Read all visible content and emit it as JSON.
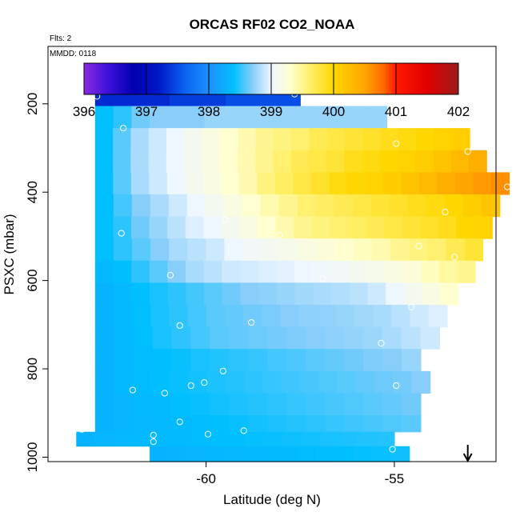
{
  "chart_data": {
    "type": "heatmap",
    "title": "ORCAS RF02 CO2_NOAA",
    "flights_label": "Flts: 2",
    "date_label": "MMDD: 0118",
    "xlabel": "Latitude (deg N)",
    "ylabel": "PSXC (mbar)",
    "xlim": [
      -64.2,
      -52.3
    ],
    "ylim": [
      1010,
      70
    ],
    "y_reversed": true,
    "x_ticks": [
      -60,
      -55
    ],
    "y_ticks": [
      200,
      400,
      600,
      800,
      1000
    ],
    "colorbar": {
      "min": 396,
      "max": 402,
      "ticks": [
        396,
        397,
        398,
        399,
        400,
        401,
        402
      ],
      "stops": [
        {
          "v": 396.0,
          "color": "#8a2be2"
        },
        {
          "v": 396.4,
          "color": "#3a10d8"
        },
        {
          "v": 396.8,
          "color": "#0000b0"
        },
        {
          "v": 397.2,
          "color": "#0018c8"
        },
        {
          "v": 397.6,
          "color": "#0a60f0"
        },
        {
          "v": 398.0,
          "color": "#1e90ff"
        },
        {
          "v": 398.4,
          "color": "#00bfff"
        },
        {
          "v": 398.7,
          "color": "#87cefa"
        },
        {
          "v": 399.0,
          "color": "#eef6ff"
        },
        {
          "v": 399.3,
          "color": "#ffffd0"
        },
        {
          "v": 399.6,
          "color": "#fff070"
        },
        {
          "v": 400.0,
          "color": "#ffd700"
        },
        {
          "v": 400.5,
          "color": "#ffa500"
        },
        {
          "v": 400.8,
          "color": "#ff6a00"
        },
        {
          "v": 401.0,
          "color": "#ff1a00"
        },
        {
          "v": 401.5,
          "color": "#e00000"
        },
        {
          "v": 402.0,
          "color": "#9b1c1c"
        }
      ]
    },
    "rows": [
      {
        "p": 180,
        "x0": -62.95,
        "x1": -57.5,
        "vals": [
          397.3,
          397.3,
          397.3,
          397.3,
          397.4,
          397.4,
          397.4,
          397.5,
          397.5,
          397.5,
          397.5
        ]
      },
      {
        "p": 230,
        "x0": -62.95,
        "x1": -55.2,
        "vals": [
          398.4,
          398.5,
          398.65,
          398.7,
          398.7,
          398.7,
          398.75,
          398.75,
          398.75,
          398.75,
          398.75,
          398.75,
          398.75,
          398.75,
          398.75,
          398.75
        ]
      },
      {
        "p": 280,
        "x0": -62.95,
        "x1": -53.0,
        "vals": [
          398.4,
          398.6,
          398.8,
          398.9,
          399.0,
          399.1,
          399.2,
          399.3,
          399.4,
          399.5,
          399.55,
          399.6,
          399.7,
          399.75,
          399.8,
          399.85,
          399.9,
          399.95,
          400.0,
          400.05,
          400.1
        ]
      },
      {
        "p": 330,
        "x0": -62.95,
        "x1": -52.55,
        "vals": [
          398.4,
          398.6,
          398.8,
          398.9,
          399.0,
          399.1,
          399.2,
          399.3,
          399.4,
          399.5,
          399.6,
          399.7,
          399.75,
          399.8,
          399.9,
          399.95,
          400.0,
          400.05,
          400.1,
          400.2,
          400.3,
          400.4
        ]
      },
      {
        "p": 380,
        "x0": -62.95,
        "x1": -51.95,
        "vals": [
          398.4,
          398.6,
          398.8,
          398.9,
          399.0,
          399.1,
          399.2,
          399.3,
          399.4,
          399.55,
          399.65,
          399.75,
          399.85,
          399.95,
          400.0,
          400.05,
          400.1,
          400.2,
          400.3,
          400.4,
          400.5,
          400.55,
          400.6
        ]
      },
      {
        "p": 430,
        "x0": -62.95,
        "x1": -52.2,
        "vals": [
          398.4,
          398.55,
          398.7,
          398.8,
          398.9,
          399.0,
          399.1,
          399.2,
          399.3,
          399.4,
          399.5,
          399.6,
          399.65,
          399.7,
          399.75,
          399.8,
          399.85,
          399.9,
          399.95,
          400.0,
          400.1,
          400.2
        ]
      },
      {
        "p": 480,
        "x0": -62.95,
        "x1": -52.4,
        "vals": [
          398.4,
          398.5,
          398.65,
          398.75,
          398.85,
          398.95,
          399.0,
          399.1,
          399.2,
          399.3,
          399.4,
          399.5,
          399.55,
          399.6,
          399.65,
          399.7,
          399.75,
          399.8,
          399.85,
          399.9,
          400.0,
          400.05
        ]
      },
      {
        "p": 530,
        "x0": -62.95,
        "x1": -52.65,
        "vals": [
          398.4,
          398.5,
          398.6,
          398.7,
          398.8,
          398.85,
          398.9,
          399.0,
          399.05,
          399.1,
          399.15,
          399.2,
          399.25,
          399.3,
          399.35,
          399.4,
          399.5,
          399.55,
          399.6,
          399.7,
          399.8
        ]
      },
      {
        "p": 580,
        "x0": -62.95,
        "x1": -52.85,
        "vals": [
          398.35,
          398.4,
          398.5,
          398.6,
          398.7,
          398.8,
          398.85,
          398.9,
          398.92,
          398.95,
          398.97,
          399.0,
          399.02,
          399.05,
          399.1,
          399.15,
          399.2,
          399.25,
          399.35,
          399.45,
          399.5
        ]
      },
      {
        "p": 630,
        "x0": -62.95,
        "x1": -53.3,
        "vals": [
          398.3,
          398.35,
          398.4,
          398.45,
          398.5,
          398.55,
          398.6,
          398.65,
          398.7,
          398.72,
          398.75,
          398.78,
          398.8,
          398.82,
          398.85,
          398.9,
          399.0,
          399.1,
          399.2,
          399.3
        ]
      },
      {
        "p": 680,
        "x0": -62.95,
        "x1": -53.6,
        "vals": [
          398.3,
          398.35,
          398.4,
          398.45,
          398.5,
          398.55,
          398.6,
          398.62,
          398.65,
          398.67,
          398.7,
          398.72,
          398.73,
          398.75,
          398.78,
          398.8,
          398.85,
          398.9,
          398.95
        ]
      },
      {
        "p": 730,
        "x0": -62.95,
        "x1": -53.8,
        "vals": [
          398.3,
          398.35,
          398.4,
          398.45,
          398.5,
          398.55,
          398.6,
          398.62,
          398.64,
          398.66,
          398.68,
          398.7,
          398.72,
          398.74,
          398.76,
          398.8,
          398.85,
          398.9
        ]
      },
      {
        "p": 780,
        "x0": -62.95,
        "x1": -54.3,
        "vals": [
          398.3,
          398.35,
          398.38,
          398.4,
          398.42,
          398.45,
          398.47,
          398.5,
          398.52,
          398.55,
          398.57,
          398.6,
          398.62,
          398.65,
          398.68,
          398.7,
          398.75
        ]
      },
      {
        "p": 830,
        "x0": -62.95,
        "x1": -54.05,
        "vals": [
          398.3,
          398.35,
          398.38,
          398.4,
          398.42,
          398.44,
          398.46,
          398.48,
          398.5,
          398.52,
          398.54,
          398.56,
          398.58,
          398.6,
          398.62,
          398.64,
          398.66,
          398.7
        ]
      },
      {
        "p": 880,
        "x0": -62.95,
        "x1": -54.3,
        "vals": [
          398.3,
          398.32,
          398.35,
          398.37,
          398.4,
          398.42,
          398.44,
          398.46,
          398.48,
          398.5,
          398.52,
          398.54,
          398.56,
          398.58,
          398.6,
          398.62,
          398.65
        ]
      },
      {
        "p": 930,
        "x0": -62.95,
        "x1": -54.3,
        "vals": [
          398.3,
          398.32,
          398.34,
          398.35,
          398.37,
          398.38,
          398.4,
          398.42,
          398.44,
          398.46,
          398.48,
          398.5,
          398.52,
          398.54,
          398.56,
          398.58,
          398.6
        ]
      },
      {
        "p": 955,
        "x0": -63.45,
        "x1": -55.0,
        "vals": [
          398.3,
          398.32,
          398.34,
          398.35,
          398.36,
          398.37,
          398.38,
          398.39,
          398.4,
          398.41,
          398.42,
          398.43,
          398.44,
          398.45,
          398.46,
          398.47,
          398.48
        ]
      },
      {
        "p": 995,
        "x0": -61.5,
        "x1": -54.6,
        "vals": [
          398.3,
          398.31,
          398.32,
          398.33,
          398.34,
          398.35,
          398.36,
          398.37,
          398.38,
          398.39,
          398.4,
          398.41,
          398.42,
          398.43
        ]
      }
    ],
    "points": [
      [
        -62.9,
        183
      ],
      [
        -57.65,
        178
      ],
      [
        -62.2,
        255
      ],
      [
        -54.95,
        290
      ],
      [
        -53.05,
        308
      ],
      [
        -52.0,
        388
      ],
      [
        -53.65,
        445
      ],
      [
        -59.5,
        462
      ],
      [
        -62.25,
        493
      ],
      [
        -58.05,
        497
      ],
      [
        -54.35,
        522
      ],
      [
        -53.4,
        547
      ],
      [
        -60.95,
        588
      ],
      [
        -56.9,
        596
      ],
      [
        -54.55,
        660
      ],
      [
        -60.7,
        702
      ],
      [
        -58.8,
        695
      ],
      [
        -55.35,
        742
      ],
      [
        -59.55,
        805
      ],
      [
        -61.95,
        848
      ],
      [
        -61.1,
        855
      ],
      [
        -60.4,
        838
      ],
      [
        -60.05,
        831
      ],
      [
        -54.95,
        838
      ],
      [
        -63.3,
        937
      ],
      [
        -61.4,
        950
      ],
      [
        -61.4,
        965
      ],
      [
        -60.7,
        920
      ],
      [
        -59.95,
        948
      ],
      [
        -59.0,
        940
      ],
      [
        -55.05,
        982
      ]
    ],
    "arrow_x": -53.05
  }
}
